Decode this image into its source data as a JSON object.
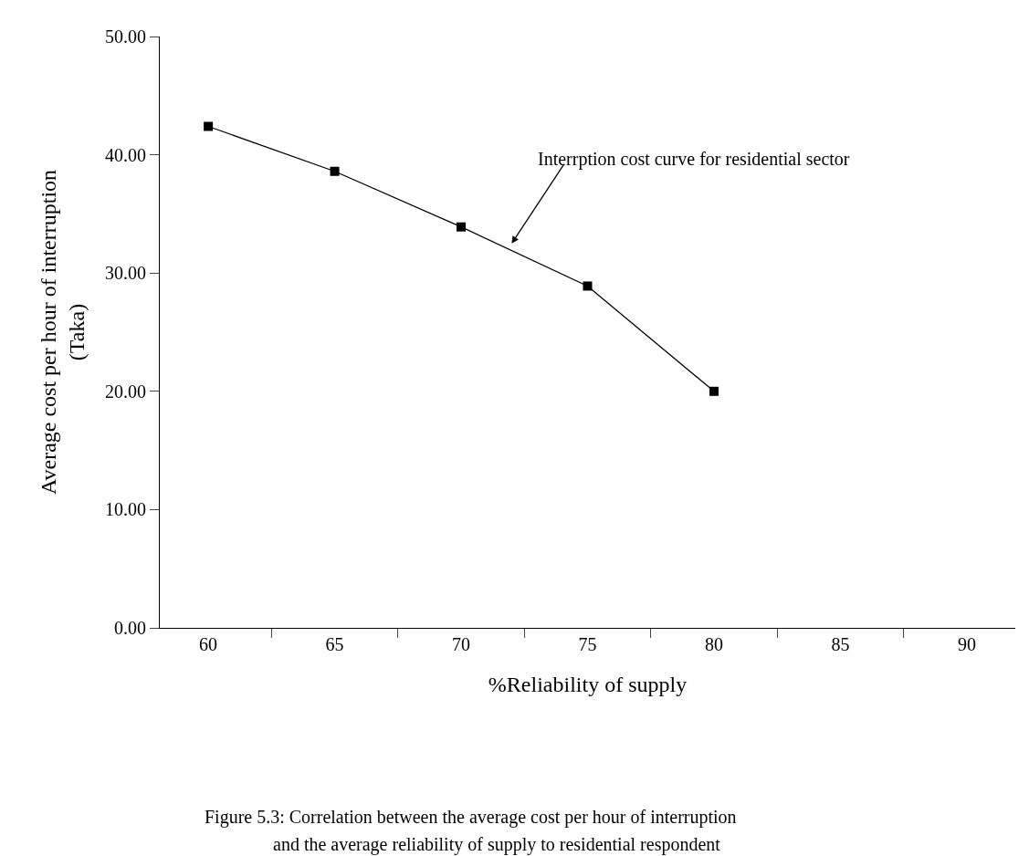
{
  "chart_data": {
    "type": "line",
    "xlabel": "%Reliability of supply",
    "ylabel": "Average cost per hour of interruption\n(Taka)",
    "categories": [
      "60",
      "65",
      "70",
      "75",
      "80",
      "85",
      "90"
    ],
    "series": [
      {
        "color": "#000000",
        "values": [
          42.4,
          38.6,
          33.9,
          28.9,
          20.0,
          null,
          null
        ]
      }
    ],
    "ylim": [
      0,
      50
    ],
    "yticks": [
      {
        "value": 0,
        "label": "0.00"
      },
      {
        "value": 10,
        "label": "10.00"
      },
      {
        "value": 20,
        "label": "20.00"
      },
      {
        "value": 30,
        "label": "30.00"
      },
      {
        "value": 40,
        "label": "40.00"
      },
      {
        "value": 50,
        "label": "50.00"
      }
    ],
    "marker": "square",
    "line_style": "solid",
    "annotations": [
      "Interrption cost curve for residential sector",
      "Figure 5.3: Correlation between the average cost per hour of interruption\nand the average reliability of supply to residential respondent"
    ]
  }
}
